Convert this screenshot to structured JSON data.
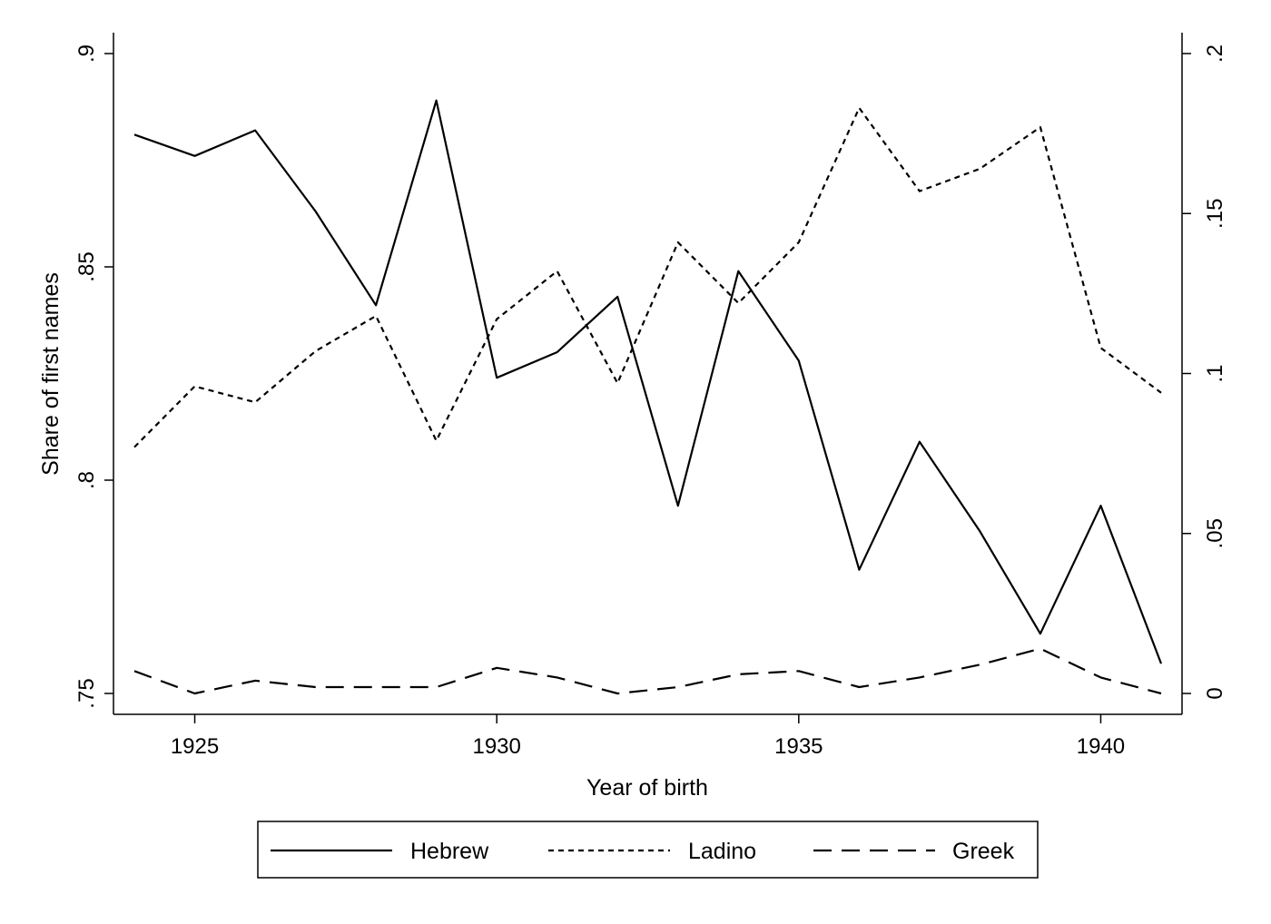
{
  "chart_data": {
    "type": "line",
    "title": "",
    "xlabel": "Year of birth",
    "ylabel": "Share of first names",
    "y2label": "",
    "xlim": [
      1924,
      1941
    ],
    "ylim": [
      0.75,
      0.9
    ],
    "y2lim": [
      0,
      0.2
    ],
    "x_ticks": [
      1925,
      1930,
      1935,
      1940
    ],
    "x_tick_labels": [
      "1925",
      "1930",
      "1935",
      "1940"
    ],
    "y_ticks": [
      0.75,
      0.8,
      0.85,
      0.9
    ],
    "y_tick_labels": [
      ".75",
      ".8",
      ".85",
      ".9"
    ],
    "y2_ticks": [
      0,
      0.05,
      0.1,
      0.15,
      0.2
    ],
    "y2_tick_labels": [
      "0",
      ".05",
      ".1",
      ".15",
      ".2"
    ],
    "grid": false,
    "legend_position": "bottom",
    "x": [
      1924,
      1925,
      1926,
      1927,
      1928,
      1929,
      1930,
      1931,
      1932,
      1933,
      1934,
      1935,
      1936,
      1937,
      1938,
      1939,
      1940,
      1941
    ],
    "series": [
      {
        "name": "Hebrew",
        "axis": "left",
        "dash": "solid",
        "values": [
          0.881,
          0.876,
          0.882,
          0.863,
          0.841,
          0.889,
          0.824,
          0.83,
          0.843,
          0.794,
          0.849,
          0.828,
          0.779,
          0.809,
          0.788,
          0.764,
          0.794,
          0.757
        ]
      },
      {
        "name": "Ladino",
        "axis": "right",
        "dash": "dotted",
        "values": [
          0.077,
          0.096,
          0.091,
          0.107,
          0.118,
          0.079,
          0.117,
          0.132,
          0.097,
          0.141,
          0.122,
          0.141,
          0.183,
          0.157,
          0.164,
          0.177,
          0.108,
          0.094
        ]
      },
      {
        "name": "Greek",
        "axis": "right",
        "dash": "dashed",
        "values": [
          0.007,
          0.0,
          0.004,
          0.002,
          0.002,
          0.002,
          0.008,
          0.005,
          0.0,
          0.002,
          0.006,
          0.007,
          0.002,
          0.005,
          0.009,
          0.014,
          0.005,
          0.0
        ]
      }
    ]
  }
}
